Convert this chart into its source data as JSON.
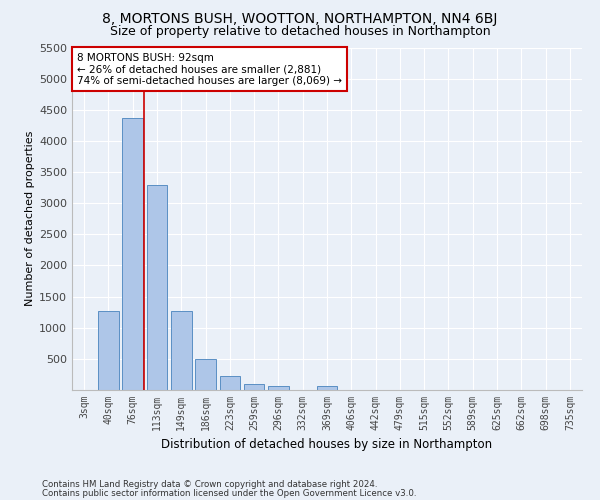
{
  "title": "8, MORTONS BUSH, WOOTTON, NORTHAMPTON, NN4 6BJ",
  "subtitle": "Size of property relative to detached houses in Northampton",
  "xlabel": "Distribution of detached houses by size in Northampton",
  "ylabel": "Number of detached properties",
  "footer_line1": "Contains HM Land Registry data © Crown copyright and database right 2024.",
  "footer_line2": "Contains public sector information licensed under the Open Government Licence v3.0.",
  "bar_labels": [
    "3sqm",
    "40sqm",
    "76sqm",
    "113sqm",
    "149sqm",
    "186sqm",
    "223sqm",
    "259sqm",
    "296sqm",
    "332sqm",
    "369sqm",
    "406sqm",
    "442sqm",
    "479sqm",
    "515sqm",
    "552sqm",
    "589sqm",
    "625sqm",
    "662sqm",
    "698sqm",
    "735sqm"
  ],
  "bar_values": [
    0,
    1270,
    4360,
    3300,
    1270,
    490,
    220,
    90,
    60,
    0,
    60,
    0,
    0,
    0,
    0,
    0,
    0,
    0,
    0,
    0,
    0
  ],
  "bar_color": "#aec6e8",
  "bar_edge_color": "#5a8fc4",
  "annotation_text": "8 MORTONS BUSH: 92sqm\n← 26% of detached houses are smaller (2,881)\n74% of semi-detached houses are larger (8,069) →",
  "annotation_box_color": "#ffffff",
  "annotation_box_edge_color": "#cc0000",
  "vline_x": 2.45,
  "vline_color": "#cc0000",
  "ylim": [
    0,
    5500
  ],
  "yticks": [
    0,
    500,
    1000,
    1500,
    2000,
    2500,
    3000,
    3500,
    4000,
    4500,
    5000,
    5500
  ],
  "bg_color": "#eaf0f8",
  "plot_bg_color": "#eaf0f8",
  "grid_color": "#ffffff",
  "title_fontsize": 10,
  "subtitle_fontsize": 9
}
